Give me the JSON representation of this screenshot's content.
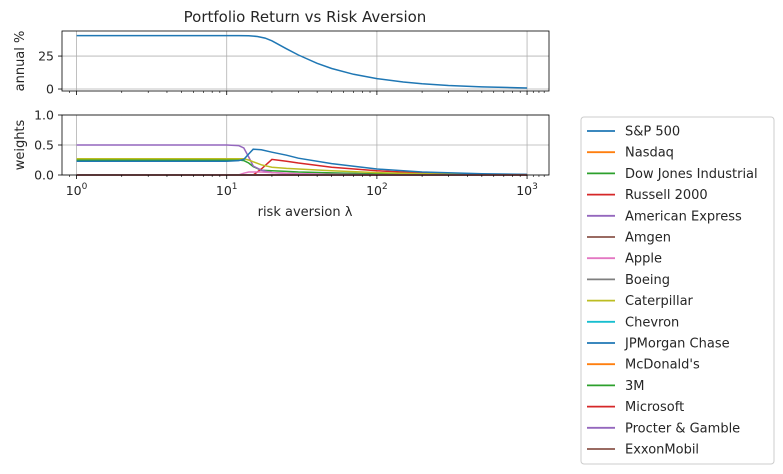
{
  "chart_data": [
    {
      "type": "line",
      "title": "Portfolio Return vs Risk Aversion",
      "xlabel": "",
      "ylabel": "annual %",
      "xscale": "log",
      "xlim": [
        0.8,
        1400
      ],
      "ylim": [
        -1.5,
        44
      ],
      "yticks": [
        "0",
        "25"
      ],
      "grid": true,
      "series": [
        {
          "color": "#1f77b4",
          "x": [
            1,
            2,
            5,
            10,
            12,
            14,
            16,
            18,
            20,
            25,
            30,
            40,
            50,
            70,
            100,
            150,
            200,
            300,
            500,
            700,
            1000
          ],
          "y": [
            40.5,
            40.5,
            40.5,
            40.5,
            40.5,
            40.4,
            39.8,
            38.6,
            36.6,
            30.5,
            25.8,
            19.5,
            15.6,
            11.2,
            7.9,
            5.3,
            4.0,
            2.7,
            1.6,
            1.2,
            0.8
          ]
        }
      ]
    },
    {
      "type": "line",
      "xlabel": "risk aversion λ",
      "ylabel": "weights",
      "xscale": "log",
      "xlim": [
        0.8,
        1400
      ],
      "ylim": [
        0,
        1.0
      ],
      "xticks": [
        1,
        10,
        100,
        1000
      ],
      "xtick_base": "10",
      "xtick_exps": [
        "0",
        "1",
        "2",
        "3"
      ],
      "yticks": [
        "0.0",
        "0.5",
        "1.0"
      ],
      "grid": true,
      "legend_position": "outside-right",
      "series": [
        {
          "name": "S&P 500",
          "color": "#1f77b4",
          "x": [
            1,
            10,
            12,
            13,
            14,
            15,
            17,
            20,
            25,
            30,
            50,
            100,
            200,
            500,
            1000
          ],
          "y": [
            0,
            0,
            0,
            0,
            0,
            0,
            0,
            0,
            0,
            0,
            0,
            0,
            0,
            0,
            0
          ]
        },
        {
          "name": "Nasdaq",
          "color": "#ff7f0e",
          "x": [
            1,
            10,
            12,
            13,
            14,
            15,
            17,
            20,
            25,
            30,
            50,
            100,
            200,
            500,
            1000
          ],
          "y": [
            0,
            0,
            0,
            0,
            0,
            0,
            0,
            0,
            0,
            0,
            0,
            0,
            0,
            0,
            0
          ]
        },
        {
          "name": "Dow Jones Industrial",
          "color": "#2ca02c",
          "x": [
            1,
            10,
            12,
            13,
            14,
            15,
            17,
            20,
            25,
            30,
            50,
            100,
            200,
            500,
            1000
          ],
          "y": [
            0.25,
            0.25,
            0.25,
            0.24,
            0.2,
            0.14,
            0.08,
            0.07,
            0.06,
            0.05,
            0.035,
            0.018,
            0.009,
            0.004,
            0.002
          ]
        },
        {
          "name": "Russell 2000",
          "color": "#d62728",
          "x": [
            1,
            10,
            12,
            13,
            14,
            15,
            17,
            20,
            25,
            30,
            50,
            100,
            200,
            500,
            1000
          ],
          "y": [
            0,
            0,
            0,
            0,
            0,
            0,
            0.1,
            0.26,
            0.23,
            0.2,
            0.13,
            0.07,
            0.035,
            0.014,
            0.007
          ]
        },
        {
          "name": "American Express",
          "color": "#9467bd",
          "x": [
            1,
            10,
            12,
            13,
            14,
            15,
            17,
            20,
            25,
            30,
            50,
            100,
            200,
            500,
            1000
          ],
          "y": [
            0.5,
            0.5,
            0.49,
            0.45,
            0.3,
            0.15,
            0.08,
            0.04,
            0.03,
            0.02,
            0.01,
            0.005,
            0.002,
            0.001,
            0
          ]
        },
        {
          "name": "Amgen",
          "color": "#8c564b",
          "x": [
            1,
            10,
            12,
            13,
            14,
            15,
            17,
            20,
            25,
            30,
            50,
            100,
            200,
            500,
            1000
          ],
          "y": [
            0,
            0,
            0,
            0,
            0,
            0,
            0,
            0,
            0,
            0,
            0,
            0,
            0,
            0,
            0
          ]
        },
        {
          "name": "Apple",
          "color": "#e377c2",
          "x": [
            1,
            10,
            12,
            13,
            14,
            15,
            17,
            20,
            25,
            30,
            50,
            100,
            200,
            500,
            1000
          ],
          "y": [
            0,
            0,
            0,
            0.03,
            0.05,
            0.05,
            0.05,
            0.04,
            0.03,
            0.02,
            0.01,
            0.005,
            0.002,
            0.001,
            0
          ]
        },
        {
          "name": "Boeing",
          "color": "#7f7f7f",
          "x": [
            1,
            10,
            12,
            13,
            14,
            15,
            17,
            20,
            25,
            30,
            50,
            100,
            200,
            500,
            1000
          ],
          "y": [
            0,
            0,
            0,
            0,
            0,
            0,
            0,
            0,
            0,
            0,
            0,
            0,
            0,
            0,
            0
          ]
        },
        {
          "name": "Caterpillar",
          "color": "#bcbd22",
          "x": [
            1,
            10,
            12,
            13,
            14,
            15,
            17,
            20,
            25,
            30,
            50,
            100,
            200,
            500,
            1000
          ],
          "y": [
            0.27,
            0.27,
            0.27,
            0.27,
            0.25,
            0.22,
            0.17,
            0.13,
            0.11,
            0.1,
            0.07,
            0.04,
            0.02,
            0.008,
            0.004
          ]
        },
        {
          "name": "Chevron",
          "color": "#17becf",
          "x": [
            1,
            10,
            12,
            13,
            14,
            15,
            17,
            20,
            25,
            30,
            50,
            100,
            200,
            500,
            1000
          ],
          "y": [
            0,
            0,
            0,
            0,
            0,
            0,
            0,
            0,
            0,
            0,
            0,
            0,
            0,
            0,
            0
          ]
        },
        {
          "name": "JPMorgan Chase",
          "color": "#1f77b4",
          "x": [
            1,
            10,
            12,
            13,
            14,
            15,
            17,
            20,
            25,
            30,
            50,
            100,
            200,
            500,
            1000
          ],
          "y": [
            0.23,
            0.23,
            0.24,
            0.26,
            0.35,
            0.43,
            0.42,
            0.38,
            0.33,
            0.28,
            0.19,
            0.1,
            0.05,
            0.02,
            0.01
          ]
        },
        {
          "name": "McDonald's",
          "color": "#ff7f0e",
          "x": [
            1,
            10,
            12,
            13,
            14,
            15,
            17,
            20,
            25,
            30,
            50,
            100,
            200,
            500,
            1000
          ],
          "y": [
            0,
            0,
            0,
            0,
            0,
            0,
            0,
            0,
            0,
            0,
            0,
            0,
            0,
            0,
            0
          ]
        },
        {
          "name": "3M",
          "color": "#2ca02c",
          "x": [
            1,
            10,
            12,
            13,
            14,
            15,
            17,
            20,
            25,
            30,
            50,
            100,
            200,
            500,
            1000
          ],
          "y": [
            0,
            0,
            0,
            0,
            0,
            0,
            0,
            0,
            0,
            0,
            0,
            0,
            0,
            0,
            0
          ]
        },
        {
          "name": "Microsoft",
          "color": "#d62728",
          "x": [
            1,
            10,
            12,
            13,
            14,
            15,
            17,
            20,
            25,
            30,
            50,
            100,
            200,
            500,
            1000
          ],
          "y": [
            0,
            0,
            0,
            0,
            0,
            0,
            0,
            0,
            0,
            0,
            0,
            0,
            0,
            0,
            0
          ]
        },
        {
          "name": "Procter & Gamble",
          "color": "#9467bd",
          "x": [
            1,
            10,
            12,
            13,
            14,
            15,
            17,
            20,
            25,
            30,
            50,
            100,
            200,
            500,
            1000
          ],
          "y": [
            0,
            0,
            0,
            0,
            0,
            0,
            0,
            0,
            0,
            0,
            0,
            0,
            0,
            0,
            0
          ]
        },
        {
          "name": "ExxonMobil",
          "color": "#8c564b",
          "x": [
            1,
            10,
            12,
            13,
            14,
            15,
            17,
            20,
            25,
            30,
            50,
            100,
            200,
            500,
            1000
          ],
          "y": [
            0,
            0,
            0,
            0,
            0,
            0,
            0,
            0,
            0,
            0,
            0,
            0,
            0,
            0,
            0
          ]
        }
      ]
    }
  ]
}
